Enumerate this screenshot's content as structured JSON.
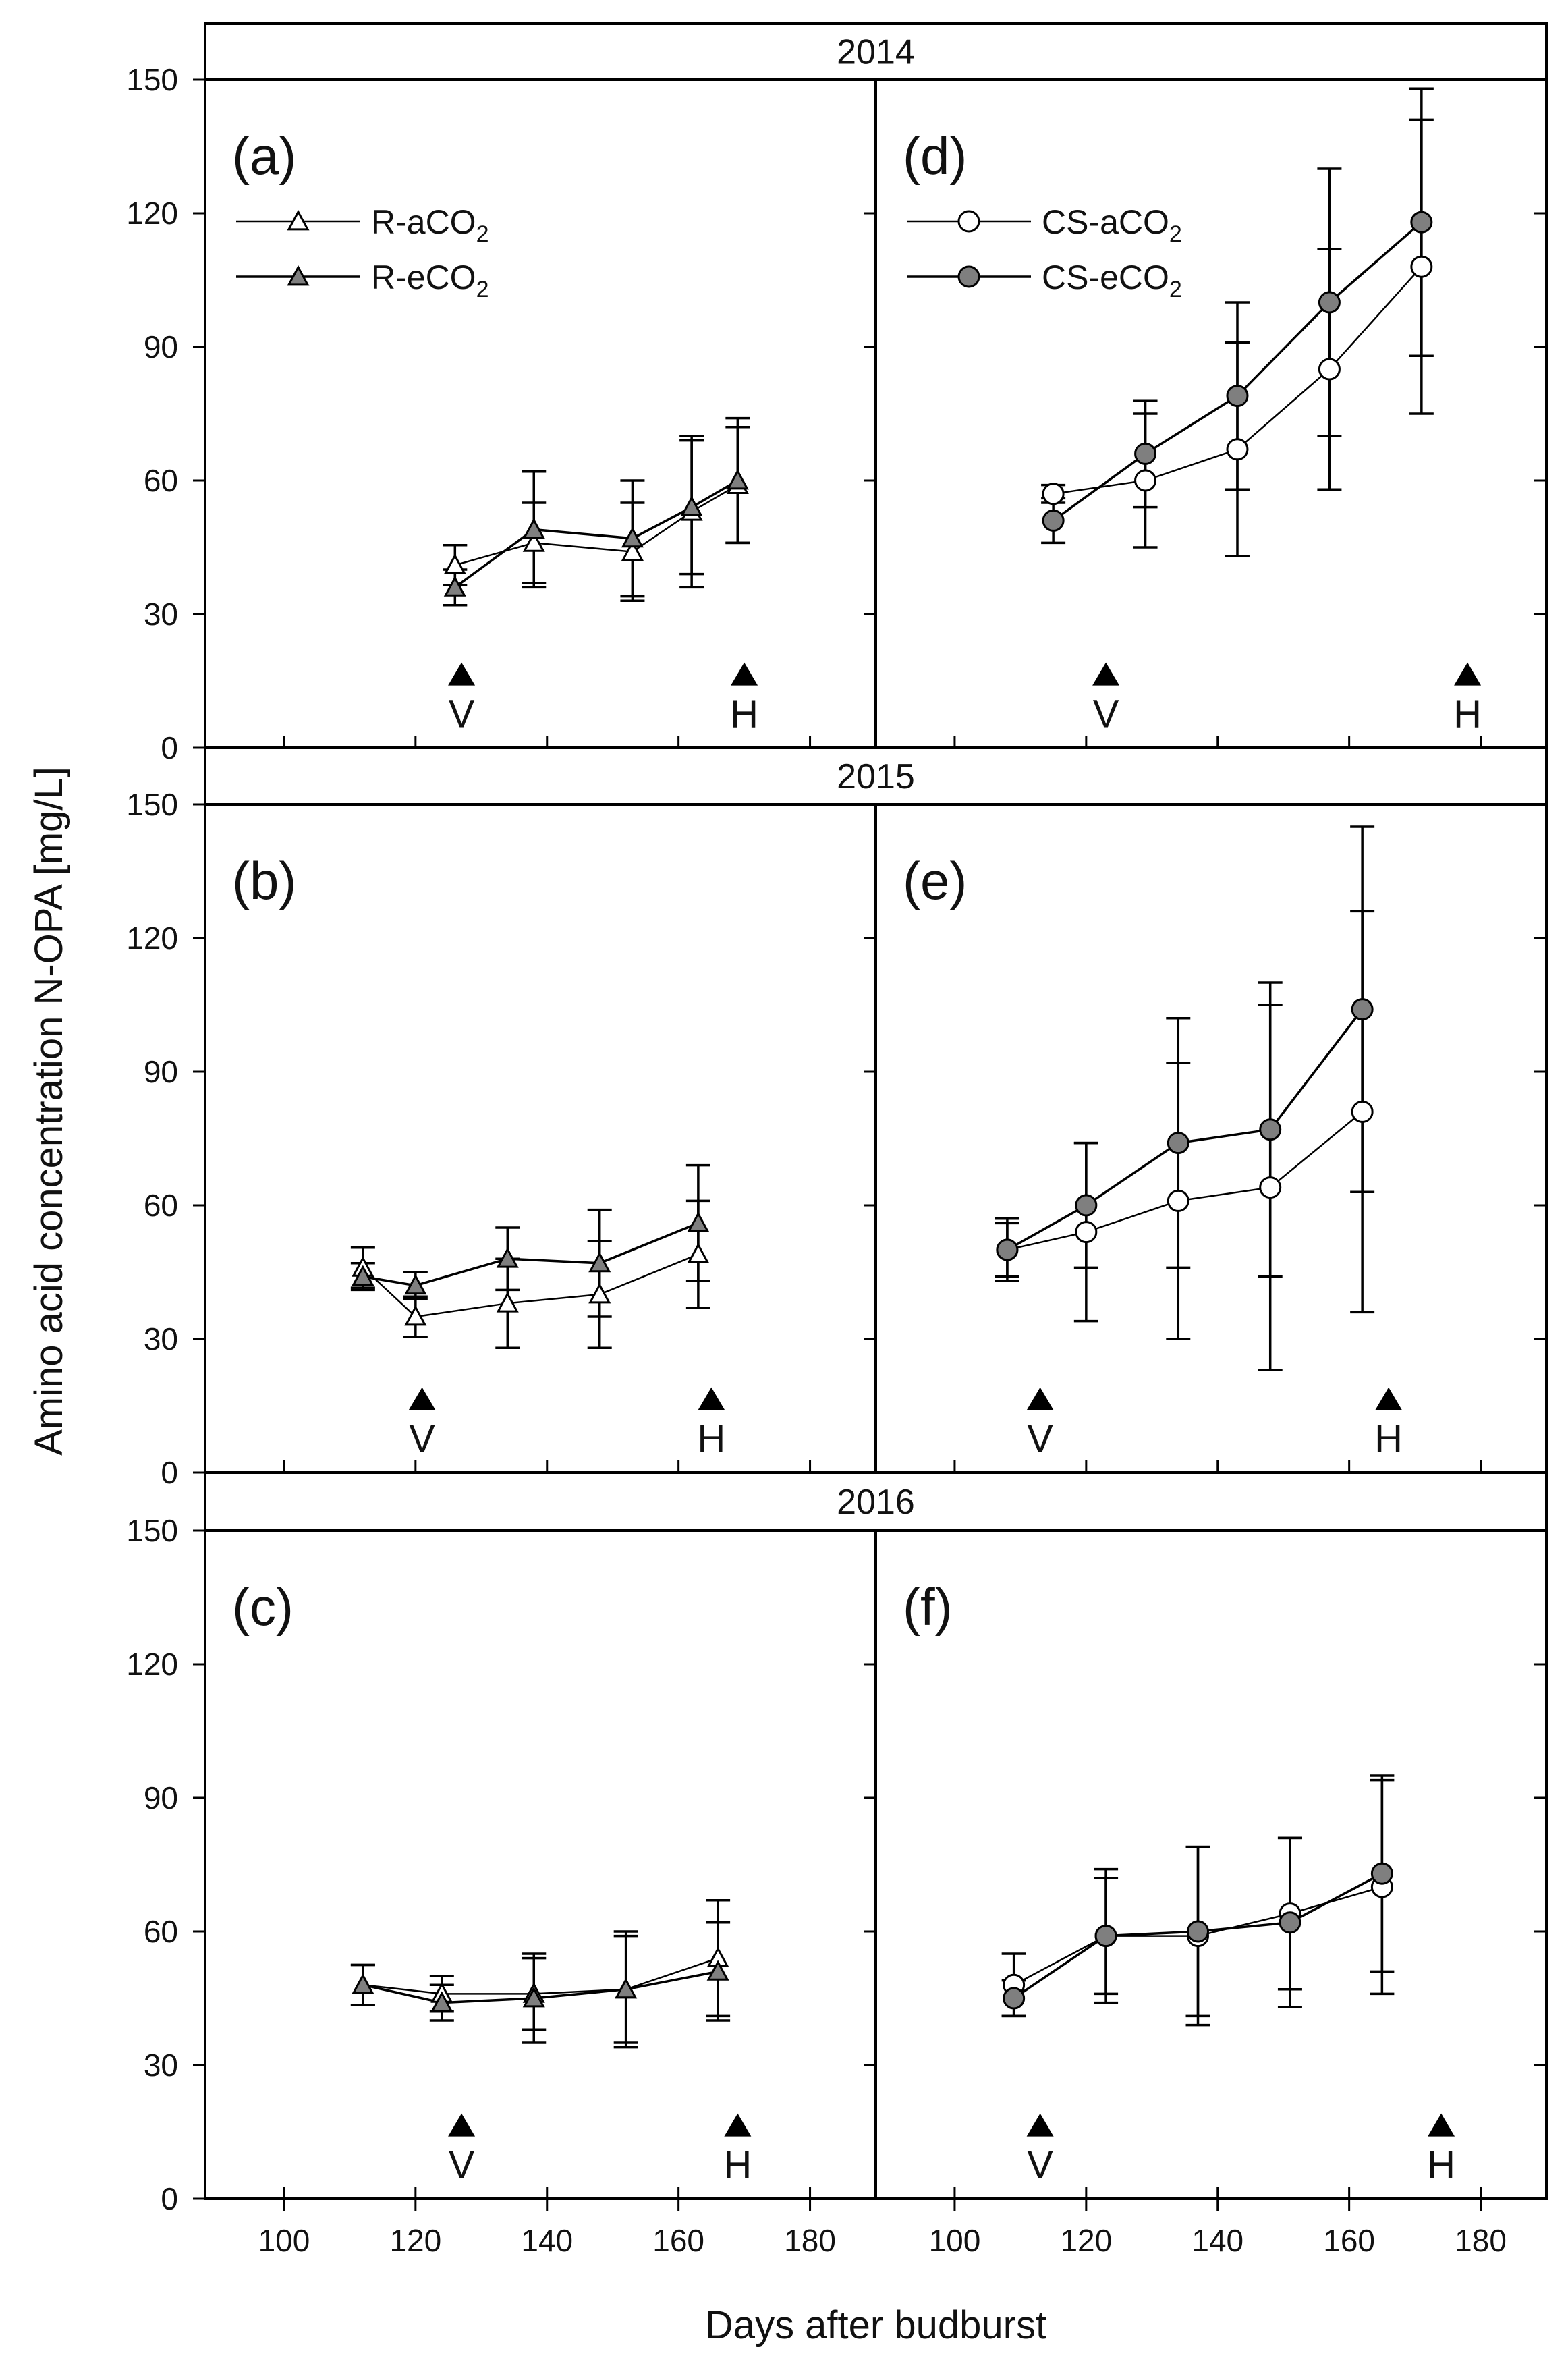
{
  "chart_data": {
    "type": "line",
    "ylabel": "Amino acid concentration N-OPA [mg/L]",
    "xlabel": "Days after budburst",
    "ylim": [
      0,
      150
    ],
    "xlim": [
      88,
      190
    ],
    "yticks": [
      0,
      30,
      60,
      90,
      120,
      150
    ],
    "xticks": [
      100,
      120,
      140,
      160,
      180
    ],
    "rows": [
      {
        "year": "2014"
      },
      {
        "year": "2015"
      },
      {
        "year": "2016"
      }
    ],
    "legend_left": [
      {
        "label": "R-aCO",
        "sub": "2",
        "marker": "triangle",
        "fill": "#ffffff"
      },
      {
        "label": "R-eCO",
        "sub": "2",
        "marker": "triangle",
        "fill": "#7f7f7f"
      }
    ],
    "legend_right": [
      {
        "label": "CS-aCO",
        "sub": "2",
        "marker": "circle",
        "fill": "#ffffff"
      },
      {
        "label": "CS-eCO",
        "sub": "2",
        "marker": "circle",
        "fill": "#7f7f7f"
      }
    ],
    "panels": [
      {
        "label": "(a)",
        "col": 0,
        "row": 0,
        "marker": "triangle",
        "veraison": {
          "label": "V",
          "x": 127
        },
        "harvest": {
          "label": "H",
          "x": 170
        },
        "series": [
          {
            "name": "R-aCO2",
            "fill": "#ffffff",
            "x": [
              126,
              138,
              153,
              162,
              169
            ],
            "y": [
              41,
              46,
              44,
              53,
              59
            ],
            "err": [
              4.5,
              9,
              11,
              17,
              13
            ]
          },
          {
            "name": "R-eCO2",
            "fill": "#7f7f7f",
            "x": [
              126,
              138,
              153,
              162,
              169
            ],
            "y": [
              36,
              49,
              47,
              54,
              60
            ],
            "err": [
              4,
              13,
              13,
              15,
              14
            ]
          }
        ]
      },
      {
        "label": "(b)",
        "col": 0,
        "row": 1,
        "marker": "triangle",
        "veraison": {
          "label": "V",
          "x": 121
        },
        "harvest": {
          "label": "H",
          "x": 165
        },
        "series": [
          {
            "name": "R-aCO2",
            "fill": "#ffffff",
            "x": [
              112,
              120,
              134,
              148,
              163
            ],
            "y": [
              46,
              35,
              38,
              40,
              49
            ],
            "err": [
              4.5,
              4.5,
              10,
              12,
              12
            ]
          },
          {
            "name": "R-eCO2",
            "fill": "#7f7f7f",
            "x": [
              112,
              120,
              134,
              148,
              163
            ],
            "y": [
              44,
              42,
              48,
              47,
              56
            ],
            "err": [
              3,
              3,
              7,
              12,
              13
            ]
          }
        ]
      },
      {
        "label": "(c)",
        "col": 0,
        "row": 2,
        "marker": "triangle",
        "veraison": {
          "label": "V",
          "x": 127
        },
        "harvest": {
          "label": "H",
          "x": 169
        },
        "series": [
          {
            "name": "R-aCO2",
            "fill": "#ffffff",
            "x": [
              112,
              124,
              138,
              152,
              166
            ],
            "y": [
              48,
              46,
              46,
              47,
              54
            ],
            "err": [
              4.5,
              4,
              8,
              12,
              13
            ]
          },
          {
            "name": "R-eCO2",
            "fill": "#7f7f7f",
            "x": [
              112,
              124,
              138,
              152,
              166
            ],
            "y": [
              48,
              44,
              45,
              47,
              51
            ],
            "err": [
              4.5,
              4,
              10,
              13,
              11
            ]
          }
        ]
      },
      {
        "label": "(d)",
        "col": 1,
        "row": 0,
        "marker": "circle",
        "veraison": {
          "label": "V",
          "x": 123
        },
        "harvest": {
          "label": "H",
          "x": 178
        },
        "series": [
          {
            "name": "CS-aCO2",
            "fill": "#ffffff",
            "x": [
              115,
              129,
              143,
              157,
              171
            ],
            "y": [
              57,
              60,
              67,
              85,
              108
            ],
            "err": [
              2,
              15,
              24,
              27,
              33
            ]
          },
          {
            "name": "CS-eCO2",
            "fill": "#7f7f7f",
            "x": [
              115,
              129,
              143,
              157,
              171
            ],
            "y": [
              51,
              66,
              79,
              100,
              118
            ],
            "err": [
              5,
              12,
              21,
              30,
              30
            ]
          }
        ]
      },
      {
        "label": "(e)",
        "col": 1,
        "row": 1,
        "marker": "circle",
        "veraison": {
          "label": "V",
          "x": 113
        },
        "harvest": {
          "label": "H",
          "x": 166
        },
        "series": [
          {
            "name": "CS-aCO2",
            "fill": "#ffffff",
            "x": [
              108,
              120,
              134,
              148,
              162
            ],
            "y": [
              50,
              54,
              61,
              64,
              81
            ],
            "err": [
              7,
              20,
              31,
              41,
              45
            ]
          },
          {
            "name": "CS-eCO2",
            "fill": "#7f7f7f",
            "x": [
              108,
              120,
              134,
              148,
              162
            ],
            "y": [
              50,
              60,
              74,
              77,
              104
            ],
            "err": [
              6,
              14,
              28,
              33,
              41
            ]
          }
        ]
      },
      {
        "label": "(f)",
        "col": 1,
        "row": 2,
        "marker": "circle",
        "veraison": {
          "label": "V",
          "x": 113
        },
        "harvest": {
          "label": "H",
          "x": 174
        },
        "series": [
          {
            "name": "CS-aCO2",
            "fill": "#ffffff",
            "x": [
              109,
              123,
              137,
              151,
              165
            ],
            "y": [
              48,
              59,
              59,
              64,
              70
            ],
            "err": [
              7,
              15,
              20,
              17,
              24
            ]
          },
          {
            "name": "CS-eCO2",
            "fill": "#7f7f7f",
            "x": [
              109,
              123,
              137,
              151,
              165
            ],
            "y": [
              45,
              59,
              60,
              62,
              73
            ],
            "err": [
              4,
              13,
              19,
              19,
              22
            ]
          }
        ]
      }
    ]
  }
}
